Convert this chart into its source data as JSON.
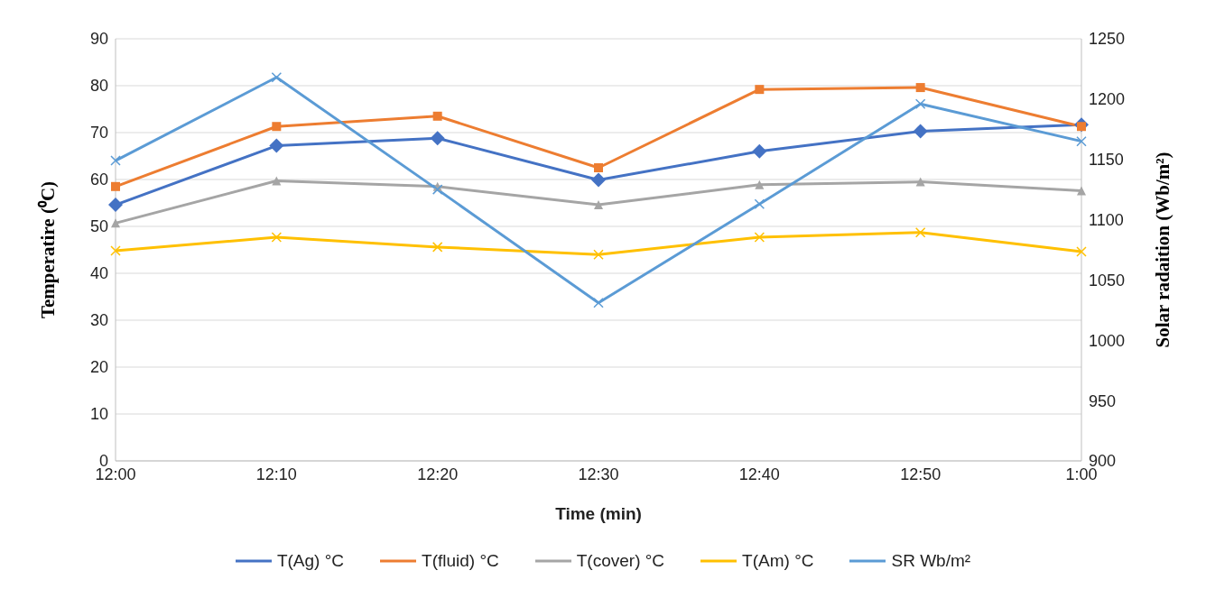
{
  "chart_data": {
    "type": "line",
    "xlabel": "Time (min)",
    "ylabel": "Temperatire (⁰C)",
    "y2label": "Solar radaition (Wb/m²)",
    "categories": [
      "12:00",
      "12:10",
      "12:20",
      "12:30",
      "12:40",
      "12:50",
      "1:00"
    ],
    "ylim": [
      0,
      90
    ],
    "yticks": [
      0,
      10,
      20,
      30,
      40,
      50,
      60,
      70,
      80,
      90
    ],
    "y2lim": [
      900,
      1250
    ],
    "y2ticks": [
      900,
      950,
      1000,
      1050,
      1100,
      1150,
      1200,
      1250
    ],
    "grid": "y",
    "legend": "bottom",
    "series": [
      {
        "name": "T(Ag) °C",
        "color": "#4472c4",
        "marker": "diamond",
        "values": [
          54.6,
          67.2,
          68.8,
          59.9,
          66,
          70.3,
          71.7
        ]
      },
      {
        "name": "T(fluid) °C",
        "color": "#ed7d31",
        "marker": "square",
        "values": [
          58.5,
          71.3,
          73.5,
          62.5,
          79.2,
          79.6,
          71.3
        ]
      },
      {
        "name": "T(cover) °C",
        "color": "#a5a5a5",
        "marker": "triangle",
        "values": [
          50.7,
          59.7,
          58.5,
          54.6,
          58.9,
          59.5,
          57.6
        ]
      },
      {
        "name": "T(Am) °C",
        "color": "#ffc000",
        "marker": "cross",
        "values": [
          44.8,
          47.7,
          45.6,
          44,
          47.7,
          48.7,
          44.6
        ]
      },
      {
        "name": "SR Wb/m²",
        "color": "#5b9bd5",
        "marker": "cross",
        "axis": "y2",
        "values": [
          1149,
          1218,
          1125,
          1031,
          1113,
          1196,
          1165
        ]
      }
    ]
  }
}
